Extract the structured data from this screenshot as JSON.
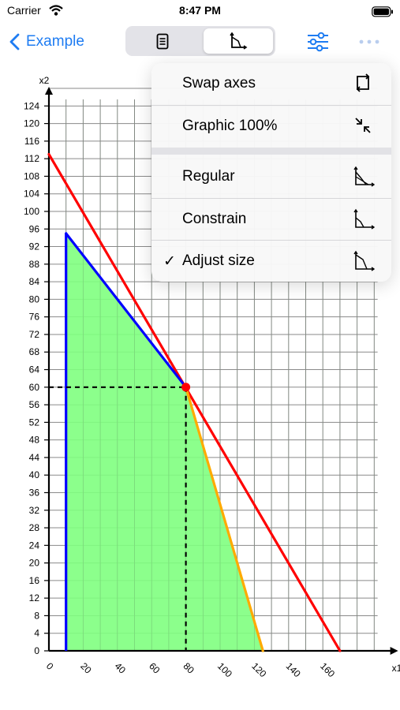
{
  "status_bar": {
    "carrier": "Carrier",
    "time": "8:47 PM"
  },
  "nav": {
    "back_label": "Example",
    "segments": [
      "document-icon",
      "graph-icon"
    ],
    "selected_segment": 1,
    "accent_color": "#1e7cf2"
  },
  "menu": {
    "items": [
      {
        "label": "Swap axes",
        "icon": "swap-axes-icon",
        "checked": false
      },
      {
        "label": "Graphic 100%",
        "icon": "shrink-arrows-icon",
        "checked": false
      },
      {
        "label": "Regular",
        "icon": "graph-regular-icon",
        "checked": false
      },
      {
        "label": "Constrain",
        "icon": "graph-constrain-icon",
        "checked": false
      },
      {
        "label": "Adjust size",
        "icon": "graph-adjust-icon",
        "checked": true
      }
    ],
    "check_mark": "✓"
  },
  "graph": {
    "x_axis_label": "x1",
    "y_axis_label": "x2",
    "x_ticks": [
      "0",
      "20",
      "40",
      "60",
      "80",
      "100",
      "120",
      "140",
      "160"
    ],
    "y_ticks": [
      "0",
      "4",
      "8",
      "12",
      "16",
      "20",
      "24",
      "28",
      "32",
      "36",
      "40",
      "44",
      "48",
      "52",
      "56",
      "60",
      "64",
      "68",
      "72",
      "76",
      "80",
      "84",
      "88",
      "92",
      "96",
      "100",
      "104",
      "108",
      "112",
      "116",
      "120",
      "124"
    ],
    "x_max": 192,
    "y_max": 128,
    "feasible_region": [
      [
        10,
        0
      ],
      [
        10,
        95
      ],
      [
        80,
        60
      ],
      [
        125,
        0
      ]
    ],
    "lines": [
      {
        "color": "#ff0000",
        "points": [
          [
            0,
            113
          ],
          [
            170,
            0
          ]
        ]
      },
      {
        "color": "#0000ff",
        "points": [
          [
            10,
            95
          ],
          [
            80,
            60
          ]
        ]
      },
      {
        "color": "#ffaa00",
        "points": [
          [
            80,
            60
          ],
          [
            125,
            0
          ]
        ]
      }
    ],
    "optimum": [
      80,
      60
    ],
    "region_color": "#80ff80",
    "optimum_color": "#ff0000"
  }
}
